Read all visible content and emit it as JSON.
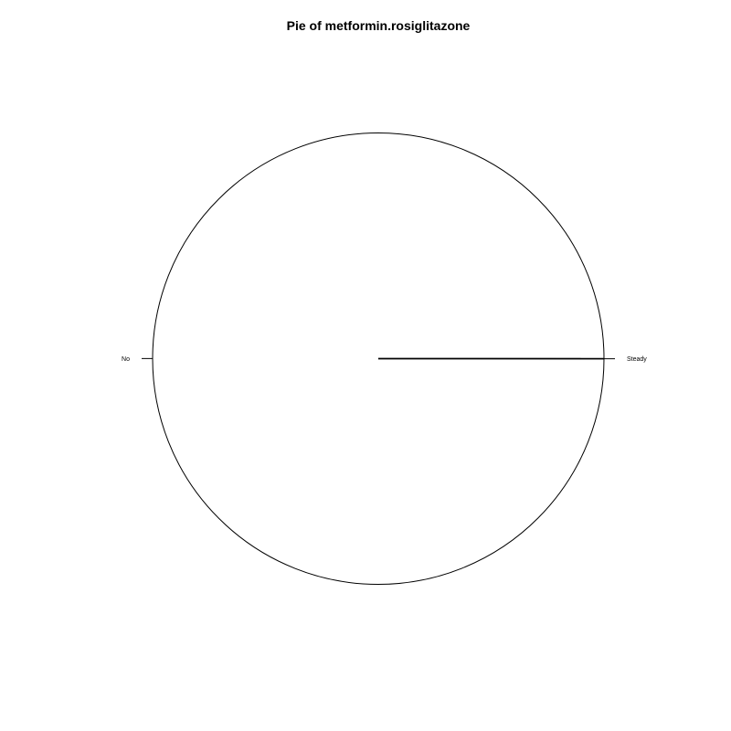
{
  "chart_data": {
    "type": "pie",
    "title": "Pie of metformin.rosiglitazone",
    "categories": [
      "No",
      "Steady"
    ],
    "values": [
      99.99,
      0.01
    ],
    "colors": [
      "#ffffff",
      "#ffffff"
    ],
    "border_color": "#000000",
    "legend": "none"
  }
}
